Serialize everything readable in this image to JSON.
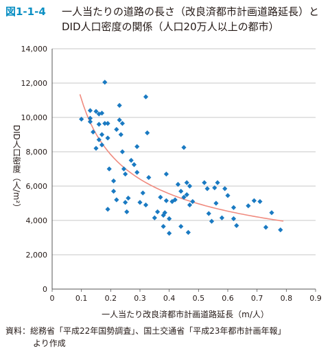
{
  "figure": {
    "label": "図1-1-4",
    "title_line1": "一人当たりの道路の長さ（改良済都市計画道路延長）と",
    "title_line2": "DID人口密度の関係（人口20万人以上の都市）",
    "source_line1": "資料：総務省「平成22年国勢調査」、国土交通省「平成23年都市計画年報」",
    "source_line2": "より作成"
  },
  "colors": {
    "points": "#1a7ac2",
    "trend": "#f08a7e",
    "title_accent": "#0a8fc3",
    "axis": "#555555",
    "grid": "#b5b5b5"
  },
  "chart_data": {
    "type": "scatter",
    "xlabel": "一人当たり改良済都市計画道路延長（m/人）",
    "ylabel": "DID人口密度（人/m²）",
    "xlim": [
      0,
      0.9
    ],
    "ylim": [
      0,
      14000
    ],
    "x_ticks": [
      "0",
      "0.1",
      "0.2",
      "0.3",
      "0.4",
      "0.5",
      "0.6",
      "0.7",
      "0.8",
      "0.9"
    ],
    "y_ticks": [
      "0",
      "2,000",
      "4,000",
      "6,000",
      "8,000",
      "10,000",
      "12,000",
      "14,000"
    ],
    "grid": "horizontal",
    "points": [
      [
        0.1,
        9900
      ],
      [
        0.13,
        10400
      ],
      [
        0.13,
        9950
      ],
      [
        0.13,
        9750
      ],
      [
        0.14,
        9150
      ],
      [
        0.15,
        10350
      ],
      [
        0.15,
        8200
      ],
      [
        0.16,
        10200
      ],
      [
        0.16,
        9600
      ],
      [
        0.16,
        8700
      ],
      [
        0.17,
        9000
      ],
      [
        0.17,
        8400
      ],
      [
        0.17,
        10250
      ],
      [
        0.18,
        12050
      ],
      [
        0.18,
        9650
      ],
      [
        0.19,
        9650
      ],
      [
        0.19,
        8800
      ],
      [
        0.19,
        4650
      ],
      [
        0.195,
        7000
      ],
      [
        0.21,
        6300
      ],
      [
        0.21,
        5700
      ],
      [
        0.22,
        5200
      ],
      [
        0.22,
        9300
      ],
      [
        0.23,
        10700
      ],
      [
        0.23,
        9850
      ],
      [
        0.235,
        9000
      ],
      [
        0.24,
        9650
      ],
      [
        0.24,
        8000
      ],
      [
        0.245,
        7000
      ],
      [
        0.25,
        6700
      ],
      [
        0.25,
        5050
      ],
      [
        0.255,
        4500
      ],
      [
        0.26,
        5300
      ],
      [
        0.27,
        7500
      ],
      [
        0.28,
        7250
      ],
      [
        0.29,
        6800
      ],
      [
        0.29,
        8300
      ],
      [
        0.3,
        5050
      ],
      [
        0.31,
        5600
      ],
      [
        0.32,
        11200
      ],
      [
        0.325,
        9100
      ],
      [
        0.32,
        4900
      ],
      [
        0.33,
        6500
      ],
      [
        0.35,
        4150
      ],
      [
        0.36,
        4500
      ],
      [
        0.37,
        5350
      ],
      [
        0.38,
        4300
      ],
      [
        0.38,
        3650
      ],
      [
        0.385,
        4450
      ],
      [
        0.39,
        6700
      ],
      [
        0.39,
        5150
      ],
      [
        0.4,
        4100
      ],
      [
        0.4,
        3250
      ],
      [
        0.41,
        5100
      ],
      [
        0.42,
        5200
      ],
      [
        0.43,
        6100
      ],
      [
        0.44,
        5700
      ],
      [
        0.44,
        3650
      ],
      [
        0.45,
        8250
      ],
      [
        0.45,
        5350
      ],
      [
        0.46,
        6200
      ],
      [
        0.46,
        5500
      ],
      [
        0.465,
        3300
      ],
      [
        0.47,
        6000
      ],
      [
        0.48,
        5100
      ],
      [
        0.47,
        4900
      ],
      [
        0.52,
        6200
      ],
      [
        0.53,
        5850
      ],
      [
        0.535,
        4400
      ],
      [
        0.545,
        3950
      ],
      [
        0.555,
        5900
      ],
      [
        0.56,
        5000
      ],
      [
        0.565,
        6200
      ],
      [
        0.58,
        4150
      ],
      [
        0.59,
        5850
      ],
      [
        0.6,
        5450
      ],
      [
        0.62,
        4750
      ],
      [
        0.62,
        4100
      ],
      [
        0.63,
        3700
      ],
      [
        0.67,
        4850
      ],
      [
        0.69,
        5150
      ],
      [
        0.71,
        5100
      ],
      [
        0.73,
        3600
      ],
      [
        0.75,
        4450
      ],
      [
        0.78,
        3450
      ]
    ],
    "trendline": {
      "type": "power",
      "x_range": [
        0.095,
        0.79
      ]
    }
  }
}
